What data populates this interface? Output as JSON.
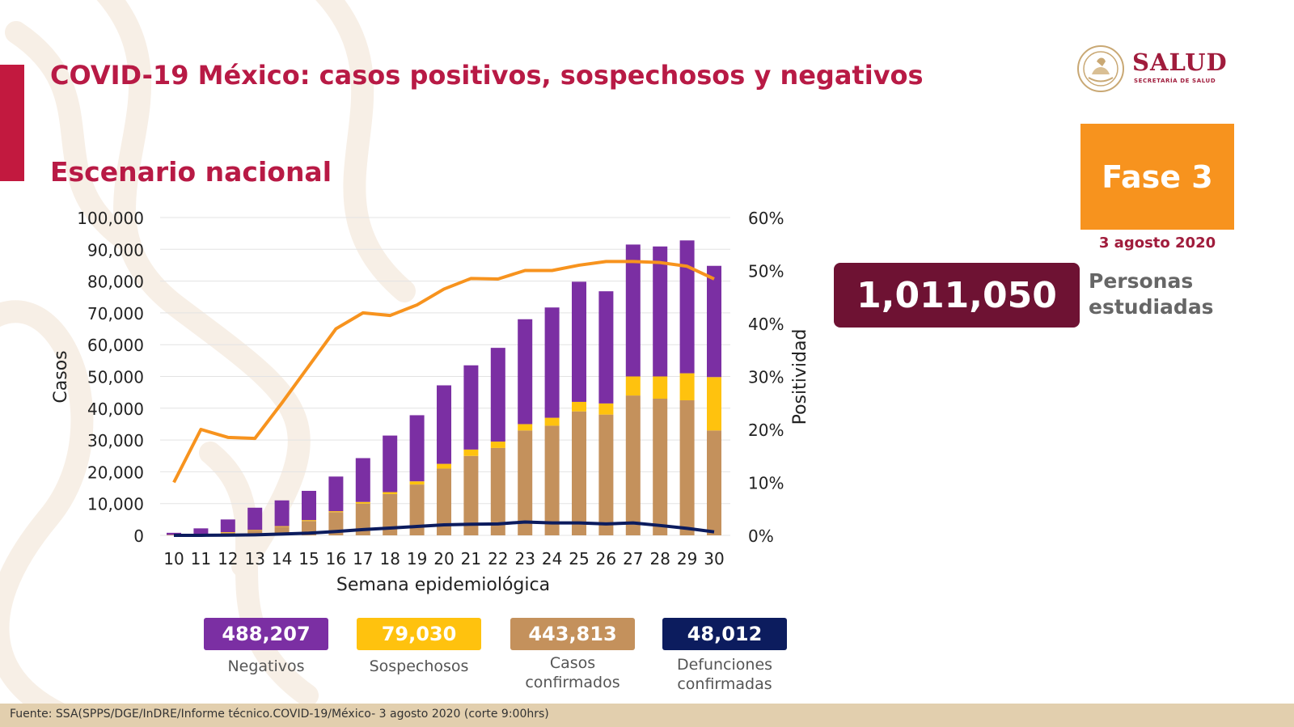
{
  "header": {
    "title": "COVID-19 México: casos positivos, sospechosos y negativos",
    "subtitle": "Escenario nacional"
  },
  "logo": {
    "name": "SALUD",
    "sub": "SECRETARÍA DE SALUD"
  },
  "phase": {
    "label": "Fase 3"
  },
  "report_date": "3 agosto 2020",
  "total": {
    "value": "1,011,050",
    "label_line1": "Personas",
    "label_line2": "estudiadas"
  },
  "stats": [
    {
      "value": "488,207",
      "label_line1": "Negativos",
      "label_line2": "",
      "color": "#7b2fa3",
      "text_color": "#ffffff"
    },
    {
      "value": "79,030",
      "label_line1": "Sospechosos",
      "label_line2": "",
      "color": "#ffc20e",
      "text_color": "#ffffff"
    },
    {
      "value": "443,813",
      "label_line1": "Casos",
      "label_line2": "confirmados",
      "color": "#c4915c",
      "text_color": "#ffffff"
    },
    {
      "value": "48,012",
      "label_line1": "Defunciones",
      "label_line2": "confirmadas",
      "color": "#0c1c5e",
      "text_color": "#ffffff"
    }
  ],
  "footer": {
    "source": "Fuente: SSA(SPPS/DGE/InDRE/Informe técnico.COVID-19/México- 3 agosto 2020 (corte 9:00hrs)"
  },
  "colors": {
    "title": "#b81a45",
    "negativos": "#7b2fa3",
    "sospechosos": "#ffc20e",
    "confirmados": "#c4915c",
    "defunciones": "#0c1c5e",
    "positividad": "#f7931e",
    "phase": "#f7931e",
    "total_box": "#6e1233"
  },
  "chart_data": {
    "type": "bar",
    "stacked": true,
    "categories": [
      "10",
      "11",
      "12",
      "13",
      "14",
      "15",
      "16",
      "17",
      "18",
      "19",
      "20",
      "21",
      "22",
      "23",
      "24",
      "25",
      "26",
      "27",
      "28",
      "29",
      "30"
    ],
    "xlabel": "Semana epidemiológica",
    "ylabel": "Casos",
    "y2label": "Positividad",
    "ylim": [
      0,
      100000
    ],
    "yticks": [
      0,
      10000,
      20000,
      30000,
      40000,
      50000,
      60000,
      70000,
      80000,
      90000,
      100000
    ],
    "ytick_labels": [
      "0",
      "10,000",
      "20,000",
      "30,000",
      "40,000",
      "50,000",
      "60,000",
      "70,000",
      "80,000",
      "90,000",
      "100,000"
    ],
    "y2lim": [
      0,
      60
    ],
    "y2ticks": [
      0,
      10,
      20,
      30,
      40,
      50,
      60
    ],
    "y2tick_labels": [
      "0%",
      "10%",
      "20%",
      "30%",
      "40%",
      "50%",
      "60%"
    ],
    "grid": true,
    "series": [
      {
        "name": "Casos confirmados",
        "key": "confirmados",
        "values": [
          100,
          400,
          800,
          1500,
          2700,
          4500,
          7300,
          10000,
          13000,
          16000,
          21000,
          25000,
          27500,
          33000,
          34500,
          39000,
          38000,
          44000,
          43000,
          42500,
          33000
        ]
      },
      {
        "name": "Sospechosos",
        "key": "sospechosos",
        "values": [
          50,
          100,
          200,
          200,
          200,
          300,
          300,
          500,
          600,
          1000,
          1500,
          2000,
          2000,
          2000,
          2500,
          3000,
          3500,
          6000,
          7000,
          8500,
          16800
        ]
      },
      {
        "name": "Negativos",
        "key": "negativos",
        "values": [
          650,
          1700,
          4000,
          7000,
          8100,
          9200,
          10900,
          13800,
          17800,
          20800,
          24700,
          26500,
          29500,
          33000,
          34700,
          37800,
          35300,
          41500,
          40900,
          41800,
          35000
        ]
      },
      {
        "name": "Positividad",
        "key": "positividad",
        "axis": "right",
        "values": [
          10,
          20,
          18.5,
          18.3,
          25,
          32,
          39,
          42,
          41.5,
          43.5,
          46.5,
          48.5,
          48.4,
          50,
          50,
          51,
          51.7,
          51.7,
          51.5,
          50.8,
          48.4
        ]
      },
      {
        "name": "Defunciones",
        "key": "defunciones",
        "values": [
          0,
          10,
          50,
          150,
          400,
          700,
          1200,
          1800,
          2300,
          2800,
          3300,
          3500,
          3600,
          4200,
          3900,
          3900,
          3600,
          3900,
          3100,
          2200,
          1100
        ]
      }
    ]
  }
}
